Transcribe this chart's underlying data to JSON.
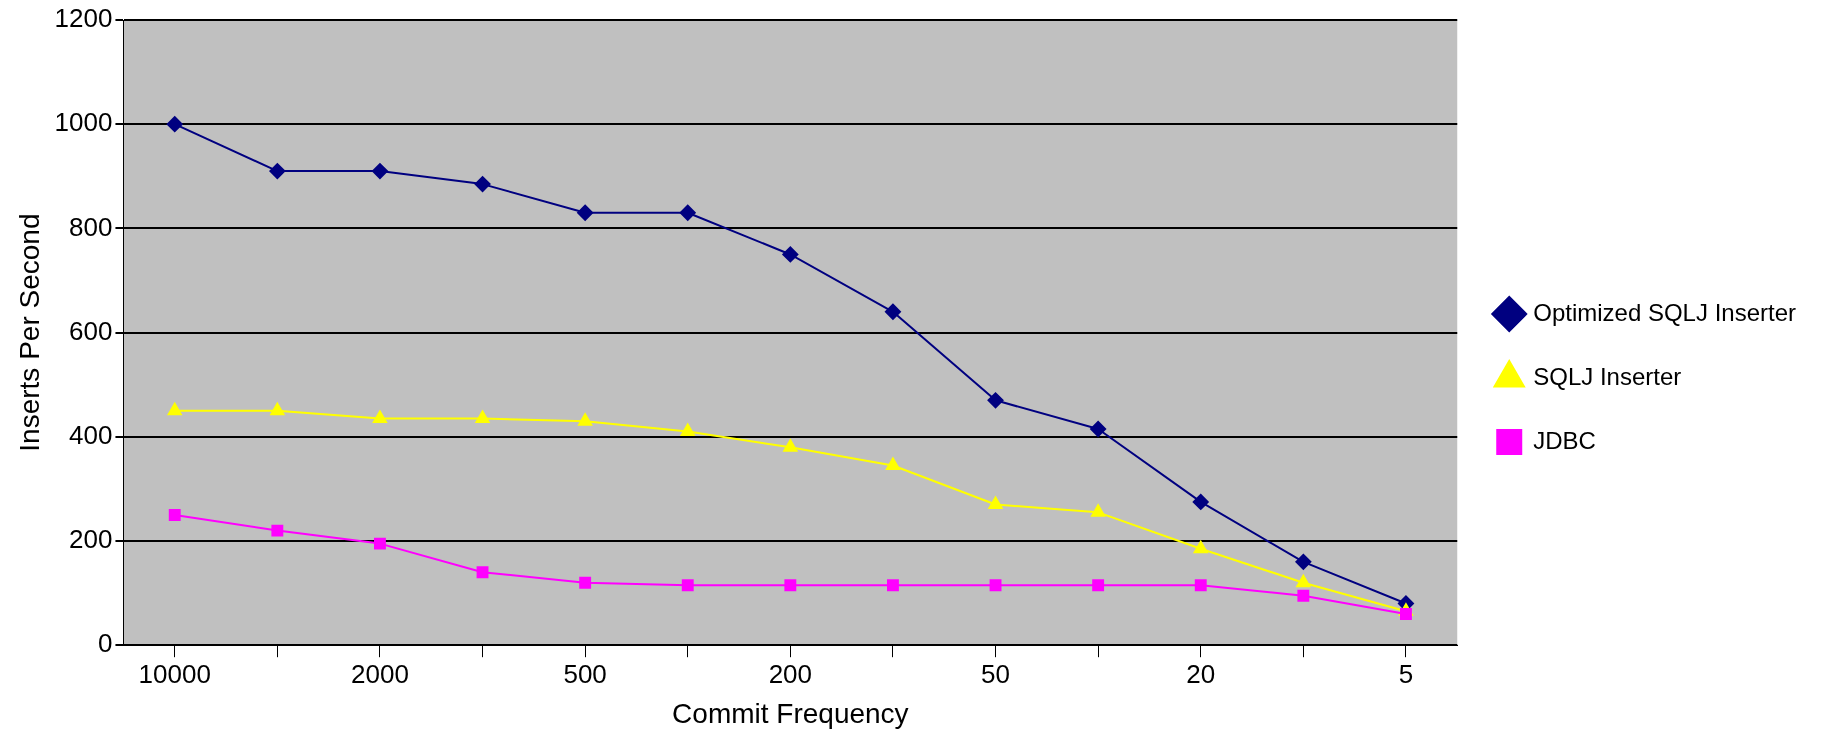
{
  "chart_data": {
    "type": "line",
    "xlabel": "Commit Frequency",
    "ylabel": "Inserts Per Second",
    "categories": [
      "10000",
      null,
      "2000",
      null,
      "500",
      null,
      "200",
      null,
      "50",
      null,
      "20",
      null,
      "5"
    ],
    "series": [
      {
        "name": "Optimized SQLJ Inserter",
        "color": "#000080",
        "marker": "diamond",
        "values": [
          1000,
          910,
          910,
          885,
          830,
          830,
          750,
          640,
          470,
          415,
          275,
          160,
          80
        ]
      },
      {
        "name": "SQLJ Inserter",
        "color": "#ffff00",
        "marker": "triangle",
        "values": [
          450,
          450,
          435,
          435,
          430,
          410,
          380,
          345,
          270,
          255,
          185,
          120,
          65
        ]
      },
      {
        "name": "JDBC",
        "color": "#ff00ff",
        "marker": "square",
        "values": [
          250,
          220,
          195,
          140,
          120,
          115,
          115,
          115,
          115,
          115,
          115,
          95,
          60
        ]
      }
    ],
    "ylim": [
      0,
      1200
    ],
    "yticks": [
      0,
      200,
      400,
      600,
      800,
      1000,
      1200
    ],
    "grid": "y",
    "legend": "right"
  }
}
